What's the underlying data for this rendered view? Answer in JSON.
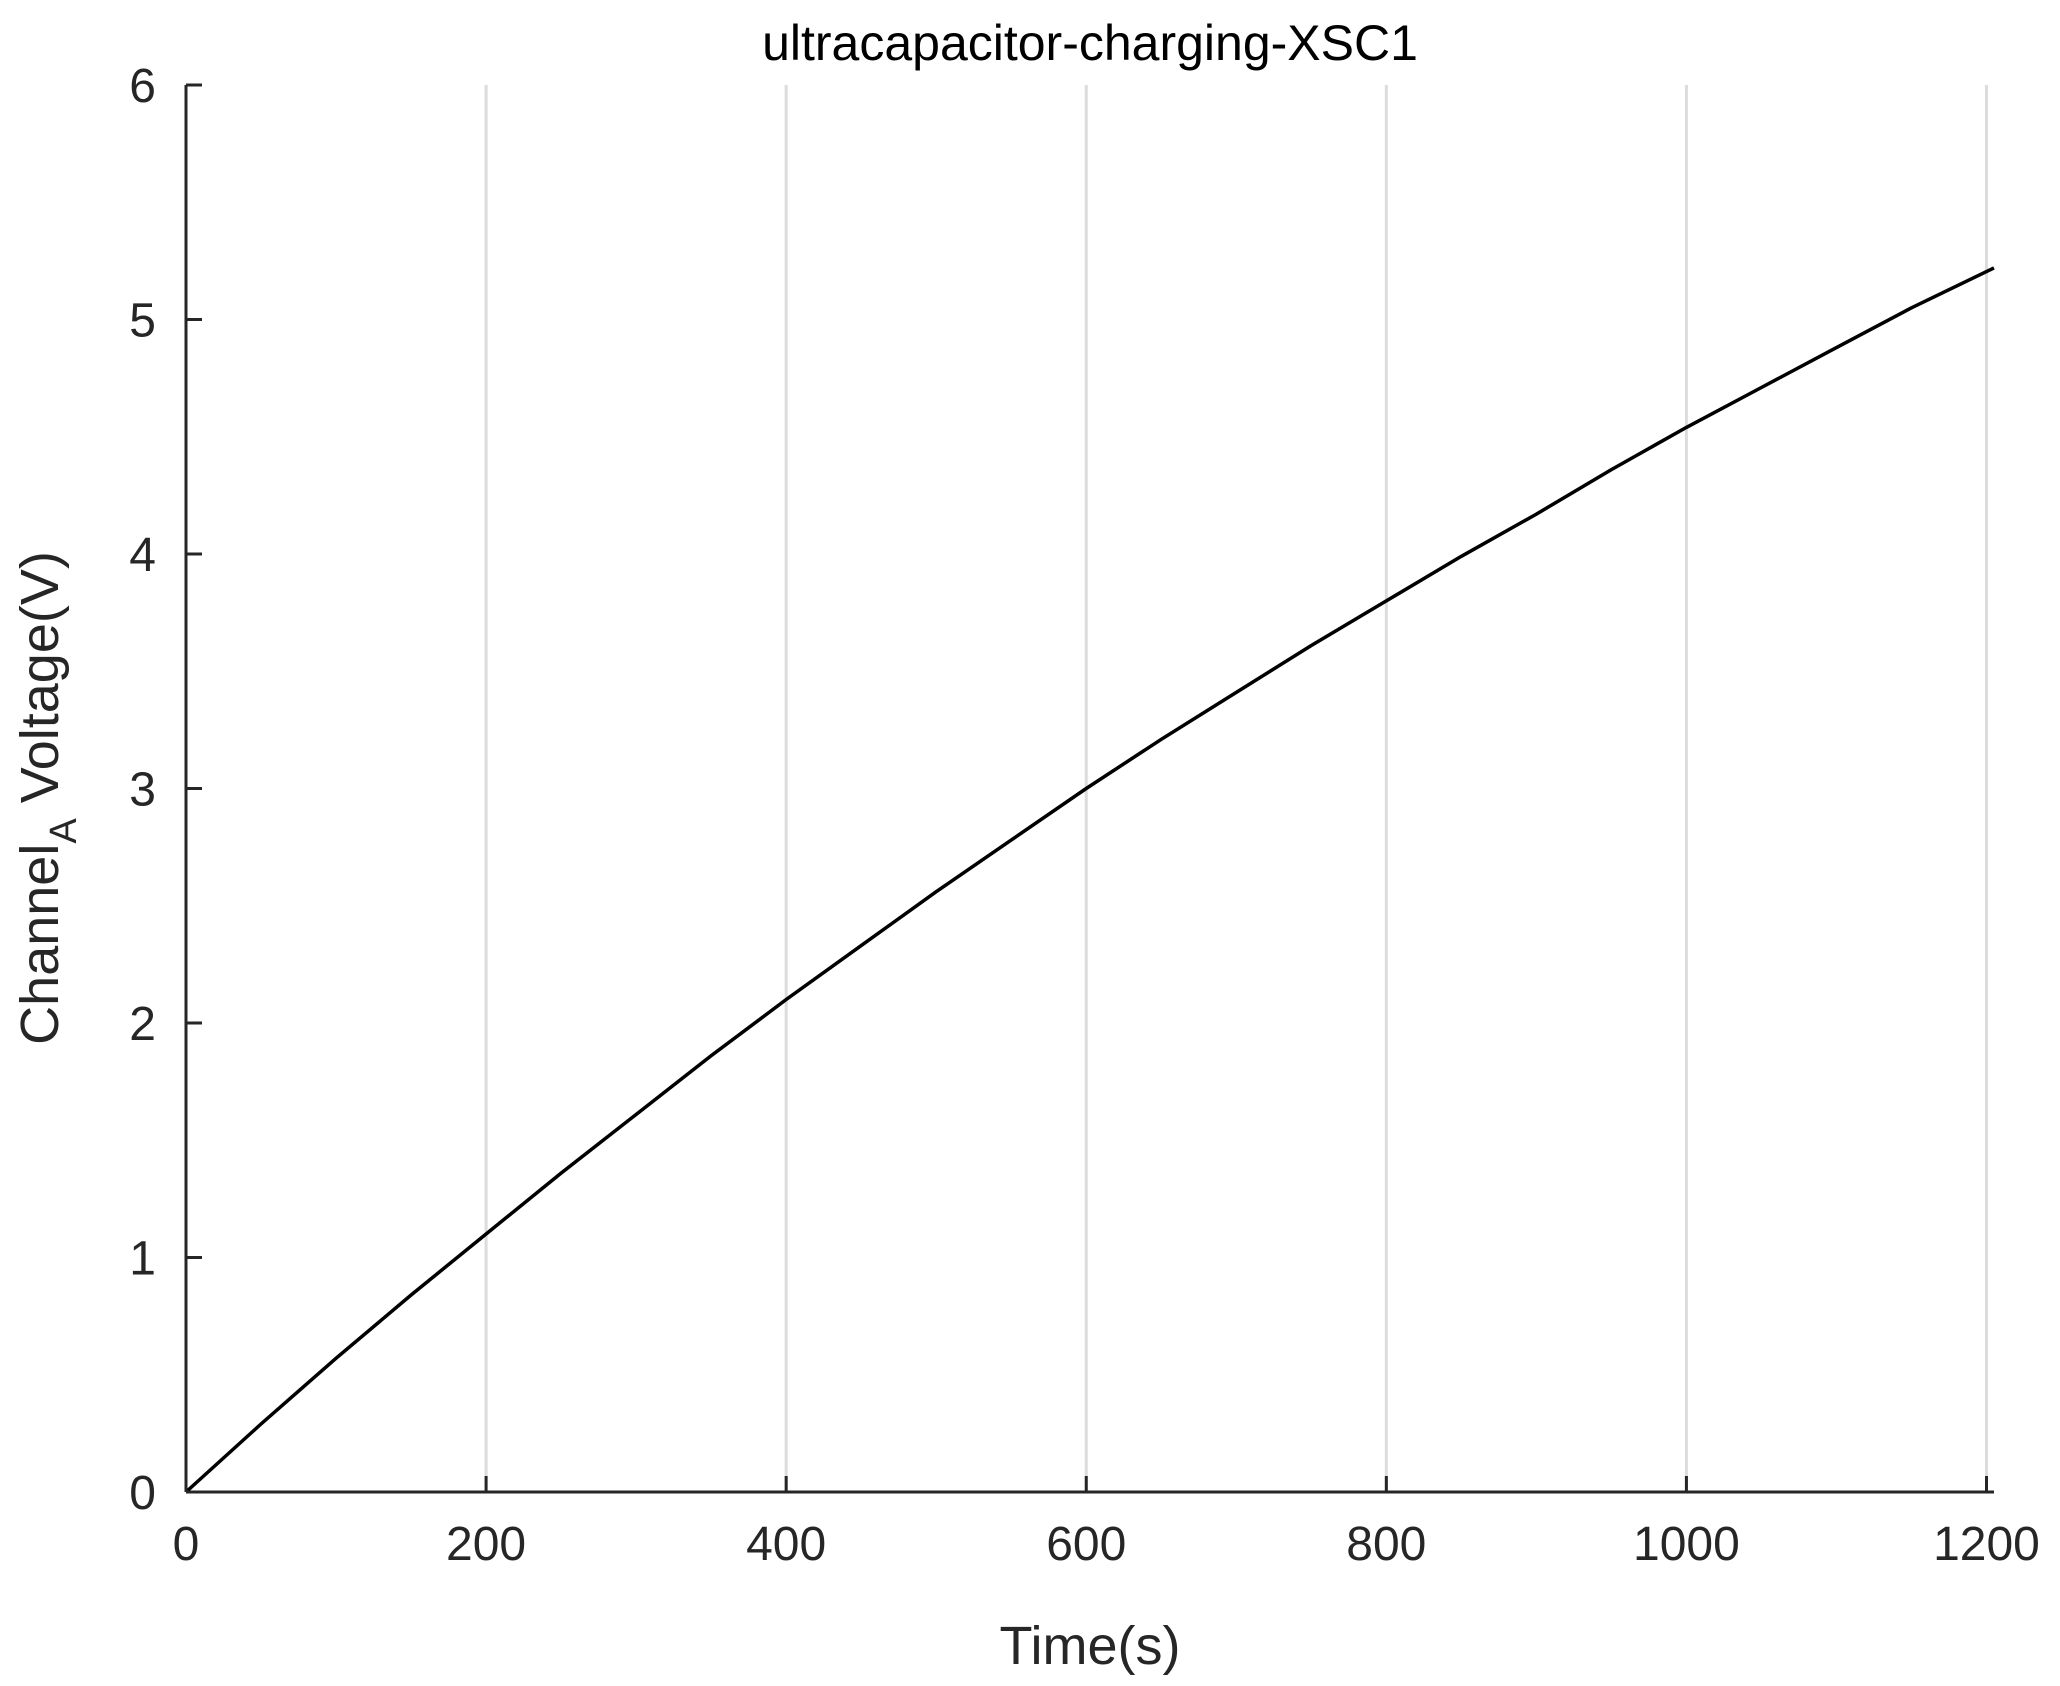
{
  "chart_data": {
    "type": "line",
    "title": "ultracapacitor-charging-XSC1",
    "xlabel": "Time(s)",
    "ylabel_main": "Channel",
    "ylabel_subscript": "A",
    "ylabel_rest": " Voltage(V)",
    "xlim": [
      0,
      1205
    ],
    "ylim": [
      0,
      6
    ],
    "x_ticks": [
      0,
      200,
      400,
      600,
      800,
      1000,
      1200
    ],
    "y_ticks": [
      0,
      1,
      2,
      3,
      4,
      5,
      6
    ],
    "grid_x": true,
    "grid_y": false,
    "line_color": "#000000",
    "grid_color": "#dcdcdc",
    "axis_color": "#262626",
    "series": [
      {
        "x": [
          0,
          50,
          100,
          150,
          200,
          250,
          300,
          350,
          400,
          450,
          500,
          550,
          600,
          650,
          700,
          750,
          800,
          850,
          900,
          950,
          1000,
          1050,
          1100,
          1150,
          1205
        ],
        "y": [
          0,
          0.29,
          0.57,
          0.84,
          1.1,
          1.36,
          1.61,
          1.86,
          2.1,
          2.33,
          2.56,
          2.78,
          3.0,
          3.21,
          3.41,
          3.61,
          3.8,
          3.99,
          4.17,
          4.36,
          4.54,
          4.71,
          4.88,
          5.05,
          5.22
        ]
      }
    ]
  }
}
